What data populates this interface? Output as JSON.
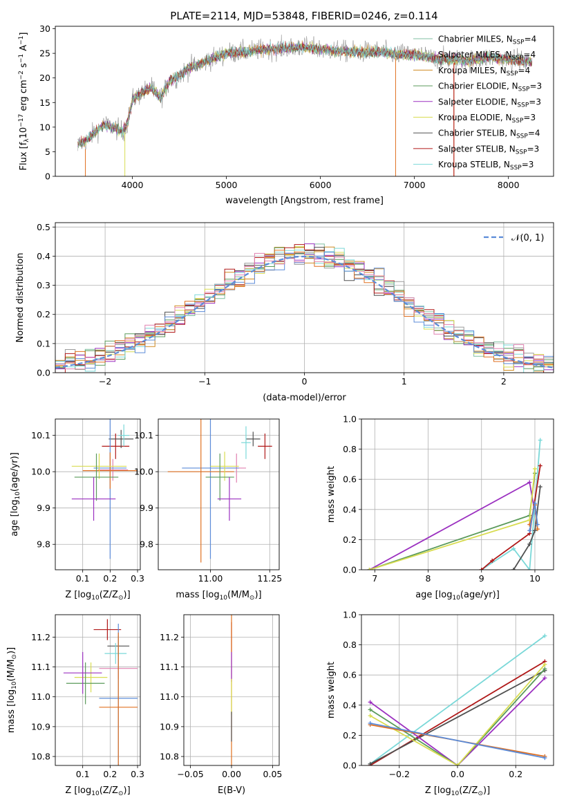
{
  "figure_title": "PLATE=2114, MJD=53848, FIBERID=0246, z=0.114",
  "model_colors": [
    "#7fbfa0",
    "#9a9a9a",
    "#d08a20",
    "#5a9a5a",
    "#9b30c0",
    "#d8dc50",
    "#505050",
    "#b01818",
    "#7ad8d8"
  ],
  "extra_colors": {
    "blue": "#5b8bd8",
    "orange": "#e07020",
    "pink": "#e080b0"
  },
  "chart_data": [
    {
      "id": "spectrum",
      "type": "line",
      "xlabel": "wavelength [Angstrom, rest frame]",
      "ylabel": "Flux [f",
      "ylabel_sub": "λ",
      "ylabel_rest": "10",
      "ylabel_exp": "−17",
      "ylabel_units": " erg cm",
      "ylabel_exp2": "−2",
      "ylabel_s": " s",
      "ylabel_exp3": "−1",
      "ylabel_A": " A",
      "ylabel_exp4": "−1",
      "ylabel_close": "]",
      "xlim": [
        3180,
        8480
      ],
      "ylim": [
        0,
        30.5
      ],
      "xticks": [
        4000,
        5000,
        6000,
        7000,
        8000
      ],
      "yticks": [
        0,
        5,
        10,
        15,
        20,
        25,
        30
      ],
      "continuum_x": [
        3420,
        3500,
        3600,
        3700,
        3800,
        3900,
        3950,
        4000,
        4100,
        4200,
        4300,
        4400,
        4500,
        4600,
        4800,
        5000,
        5200,
        5400,
        5600,
        5800,
        6000,
        6200,
        6400,
        6600,
        6800,
        7000,
        7200,
        7400,
        7600,
        7800,
        8000,
        8250
      ],
      "continuum_y": [
        6.5,
        7.0,
        9.0,
        10.5,
        10.0,
        9.0,
        11.0,
        15.5,
        17.0,
        18.0,
        16.0,
        19.5,
        20.5,
        22.0,
        23.5,
        25.0,
        25.3,
        25.8,
        26.0,
        26.3,
        25.8,
        25.5,
        25.2,
        25.4,
        24.8,
        24.8,
        24.0,
        23.8,
        23.5,
        24.2,
        23.7,
        23.3
      ],
      "legend": [
        {
          "label": "Chabrier MILES, N",
          "sub": "SSP",
          "tail": "=4"
        },
        {
          "label": "Salpeter MILES, N",
          "sub": "SSP",
          "tail": "=4"
        },
        {
          "label": "Kroupa MILES, N",
          "sub": "SSP",
          "tail": "=4"
        },
        {
          "label": "Chabrier ELODIE, N",
          "sub": "SSP",
          "tail": "=3"
        },
        {
          "label": "Salpeter ELODIE, N",
          "sub": "SSP",
          "tail": "=3"
        },
        {
          "label": "Kroupa ELODIE, N",
          "sub": "SSP",
          "tail": "=3"
        },
        {
          "label": "Chabrier STELIB, N",
          "sub": "SSP",
          "tail": "=4"
        },
        {
          "label": "Salpeter STELIB, N",
          "sub": "SSP",
          "tail": "=3"
        },
        {
          "label": "Kroupa STELIB, N",
          "sub": "SSP",
          "tail": "=3"
        }
      ],
      "grid": false,
      "legend_position": "upper-right"
    },
    {
      "id": "residuals",
      "type": "histogram",
      "xlabel": "(data-model)/error",
      "ylabel": "Normed distribution",
      "xlim": [
        -2.5,
        2.5
      ],
      "ylim": [
        0,
        0.515
      ],
      "xticks": [
        -2,
        -1,
        0,
        1,
        2
      ],
      "yticks": [
        0.0,
        0.1,
        0.2,
        0.3,
        0.4,
        0.5
      ],
      "bin_width": 0.1,
      "reference_curve": "N(0,1)",
      "reference_label": "𝒩(0, 1)",
      "grid": true,
      "legend_position": "upper-right"
    },
    {
      "id": "age_vs_Z",
      "type": "scatter",
      "xlabel": "Z [log",
      "xlabel_sub": "10",
      "xlabel_rest": "(Z/Z",
      "xlabel_sun": "⊙",
      "xlabel_close": ")]",
      "ylabel": "age  [log",
      "ylabel_sub": "10",
      "ylabel_rest": "(age/yr)]",
      "xlim": [
        0.0,
        0.31
      ],
      "ylim": [
        9.73,
        10.145
      ],
      "xticks": [
        0.1,
        0.2,
        0.3
      ],
      "yticks": [
        9.8,
        9.9,
        10.0,
        10.1
      ],
      "points": [
        {
          "x": 0.22,
          "y": 10.07,
          "ex": 0.05,
          "ey": 0.035,
          "c": "#b01818"
        },
        {
          "x": 0.24,
          "y": 10.09,
          "ex": 0.045,
          "ey": 0.025,
          "c": "#505050"
        },
        {
          "x": 0.25,
          "y": 10.1,
          "ex": 0.02,
          "ey": 0.03,
          "c": "#7ad8d8"
        },
        {
          "x": 0.21,
          "y": 10.005,
          "ex": 0.055,
          "ey": 0.03,
          "c": "#e080b0"
        },
        {
          "x": 0.2,
          "y": 10.01,
          "ex": 0.06,
          "ey": 0.25,
          "c": "#5b8bd8"
        },
        {
          "x": 0.2,
          "y": 10.003,
          "ex": 0.1,
          "ey": 0.05,
          "c": "#e07020"
        },
        {
          "x": 0.16,
          "y": 10.015,
          "ex": 0.1,
          "ey": 0.035,
          "c": "#d8dc50"
        },
        {
          "x": 0.15,
          "y": 9.985,
          "ex": 0.08,
          "ey": 0.065,
          "c": "#5a9a5a"
        },
        {
          "x": 0.14,
          "y": 9.925,
          "ex": 0.08,
          "ey": 0.06,
          "c": "#9b30c0"
        }
      ],
      "grid": true
    },
    {
      "id": "age_vs_mass",
      "type": "scatter",
      "xlabel": "mass [log",
      "xlabel_sub": "10",
      "xlabel_rest": "(M/M",
      "xlabel_sun": "⊙",
      "xlabel_close": ")]",
      "xlim": [
        10.78,
        11.29
      ],
      "ylim": [
        9.73,
        10.145
      ],
      "xticks": [
        11.0,
        11.25
      ],
      "xtick_labels": [
        "11.00",
        "11.25"
      ],
      "yticks": [
        9.8,
        9.9,
        10.0,
        10.1
      ],
      "points": [
        {
          "x": 11.23,
          "y": 10.07,
          "ex": 0.03,
          "ey": 0.035,
          "c": "#b01818"
        },
        {
          "x": 11.18,
          "y": 10.09,
          "ex": 0.03,
          "ey": 0.02,
          "c": "#505050"
        },
        {
          "x": 11.15,
          "y": 10.08,
          "ex": 0.02,
          "ey": 0.045,
          "c": "#7ad8d8"
        },
        {
          "x": 11.11,
          "y": 10.01,
          "ex": 0.04,
          "ey": 0.04,
          "c": "#e080b0"
        },
        {
          "x": 11.0,
          "y": 10.01,
          "ex": 0.12,
          "ey": 0.25,
          "c": "#5b8bd8"
        },
        {
          "x": 10.96,
          "y": 10.0,
          "ex": 0.14,
          "ey": 0.25,
          "c": "#e07020"
        },
        {
          "x": 11.06,
          "y": 10.015,
          "ex": 0.06,
          "ey": 0.04,
          "c": "#d8dc50"
        },
        {
          "x": 11.04,
          "y": 9.985,
          "ex": 0.06,
          "ey": 0.065,
          "c": "#5a9a5a"
        },
        {
          "x": 11.08,
          "y": 9.925,
          "ex": 0.05,
          "ey": 0.06,
          "c": "#9b30c0"
        }
      ],
      "grid": true
    },
    {
      "id": "weight_vs_age",
      "type": "line",
      "xlabel": "age  [log",
      "xlabel_sub": "10",
      "xlabel_rest": "(age/yr)]",
      "ylabel": "mass weight",
      "xlim": [
        6.75,
        10.35
      ],
      "ylim": [
        0,
        1.0
      ],
      "xticks": [
        7,
        8,
        9,
        10
      ],
      "yticks": [
        0.0,
        0.2,
        0.4,
        0.6,
        0.8,
        1.0
      ],
      "series": [
        {
          "c": "#9b30c0",
          "x": [
            6.9,
            9.9,
            10.0
          ],
          "y": [
            0.0,
            0.58,
            0.38
          ]
        },
        {
          "c": "#5a9a5a",
          "x": [
            6.9,
            9.9,
            10.0
          ],
          "y": [
            0.0,
            0.36,
            0.64
          ]
        },
        {
          "c": "#d8dc50",
          "x": [
            6.9,
            9.9,
            10.0
          ],
          "y": [
            0.0,
            0.33,
            0.67
          ]
        },
        {
          "c": "#7ad8d8",
          "x": [
            9.0,
            9.6,
            9.9,
            10.1
          ],
          "y": [
            0.0,
            0.14,
            0.0,
            0.86
          ]
        },
        {
          "c": "#b01818",
          "x": [
            9.0,
            9.2,
            9.9,
            10.1
          ],
          "y": [
            0.0,
            0.06,
            0.24,
            0.69
          ]
        },
        {
          "c": "#505050",
          "x": [
            9.6,
            9.9,
            10.0,
            10.1
          ],
          "y": [
            0.0,
            0.17,
            0.26,
            0.55
          ]
        },
        {
          "c": "#e07020",
          "x": [
            9.9,
            10.0,
            10.05
          ],
          "y": [
            0.3,
            0.43,
            0.27
          ]
        },
        {
          "c": "#5b8bd8",
          "x": [
            9.9,
            10.0,
            10.05
          ],
          "y": [
            0.26,
            0.44,
            0.3
          ]
        }
      ],
      "grid": true
    },
    {
      "id": "mass_vs_Z",
      "type": "scatter",
      "xlabel": "Z [log",
      "xlabel_sub": "10",
      "xlabel_rest": "(Z/Z",
      "xlabel_sun": "⊙",
      "xlabel_close": ")]",
      "ylabel": "mass [log",
      "ylabel_sub": "10",
      "ylabel_rest": "(M/M",
      "ylabel_sun": "⊙",
      "ylabel_close": ")]",
      "xlim": [
        0.0,
        0.31
      ],
      "ylim": [
        10.77,
        11.275
      ],
      "xticks": [
        0.1,
        0.2,
        0.3
      ],
      "yticks": [
        10.8,
        10.9,
        11.0,
        11.1,
        11.2
      ],
      "points": [
        {
          "x": 0.19,
          "y": 11.225,
          "ex": 0.05,
          "ey": 0.035,
          "c": "#b01818"
        },
        {
          "x": 0.23,
          "y": 11.17,
          "ex": 0.04,
          "ey": 0.035,
          "c": "#505050"
        },
        {
          "x": 0.22,
          "y": 11.145,
          "ex": 0.04,
          "ey": 0.035,
          "c": "#7ad8d8"
        },
        {
          "x": 0.23,
          "y": 11.095,
          "ex": 0.07,
          "ey": 0.035,
          "c": "#e080b0"
        },
        {
          "x": 0.23,
          "y": 10.995,
          "ex": 0.07,
          "ey": 0.25,
          "c": "#5b8bd8"
        },
        {
          "x": 0.23,
          "y": 10.965,
          "ex": 0.07,
          "ey": 0.25,
          "c": "#e07020"
        },
        {
          "x": 0.13,
          "y": 11.065,
          "ex": 0.06,
          "ey": 0.05,
          "c": "#d8dc50"
        },
        {
          "x": 0.11,
          "y": 11.045,
          "ex": 0.07,
          "ey": 0.07,
          "c": "#5a9a5a"
        },
        {
          "x": 0.1,
          "y": 11.08,
          "ex": 0.07,
          "ey": 0.07,
          "c": "#9b30c0"
        }
      ],
      "grid": true
    },
    {
      "id": "mass_vs_ebv",
      "type": "scatter",
      "xlabel": "E(B-V)",
      "xlim": [
        -0.058,
        0.058
      ],
      "ylim": [
        10.77,
        11.275
      ],
      "xticks": [
        -0.05,
        0.0,
        0.05
      ],
      "xtick_labels": [
        "−0.05",
        "0.00",
        "0.05"
      ],
      "yticks": [
        10.8,
        10.9,
        11.0,
        11.1,
        11.2
      ],
      "points": [
        {
          "x": 0.0,
          "y": 11.2,
          "ex": 0,
          "ey": 0.05,
          "c": "#b01818"
        },
        {
          "x": 0.0,
          "y": 11.05,
          "ex": 0,
          "ey": 0.28,
          "c": "#e07020"
        },
        {
          "x": 0.0,
          "y": 11.1,
          "ex": 0,
          "ey": 0.05,
          "c": "#9b30c0"
        },
        {
          "x": 0.0,
          "y": 11.0,
          "ex": 0,
          "ey": 0.06,
          "c": "#d8dc50"
        },
        {
          "x": 0.0,
          "y": 10.9,
          "ex": 0,
          "ey": 0.05,
          "c": "#505050"
        }
      ],
      "grid": true
    },
    {
      "id": "weight_vs_Z",
      "type": "line",
      "xlabel": "Z [log",
      "xlabel_sub": "10",
      "xlabel_rest": "(Z/Z",
      "xlabel_sun": "⊙",
      "xlabel_close": ")]",
      "ylabel": "mass weight",
      "xlim": [
        -0.33,
        0.33
      ],
      "ylim": [
        0,
        1.0
      ],
      "xticks": [
        -0.2,
        0.0,
        0.2
      ],
      "xtick_labels": [
        "−0.2",
        "0.0",
        "0.2"
      ],
      "yticks": [
        0.0,
        0.2,
        0.4,
        0.6,
        0.8,
        1.0
      ],
      "series": [
        {
          "c": "#7ad8d8",
          "x": [
            -0.3,
            0.3
          ],
          "y": [
            0.01,
            0.86
          ]
        },
        {
          "c": "#b01818",
          "x": [
            -0.3,
            0.3
          ],
          "y": [
            0.0,
            0.69
          ]
        },
        {
          "c": "#505050",
          "x": [
            -0.3,
            0.3
          ],
          "y": [
            0.01,
            0.63
          ]
        },
        {
          "c": "#9b30c0",
          "x": [
            -0.3,
            0.0,
            0.3
          ],
          "y": [
            0.42,
            0.0,
            0.58
          ]
        },
        {
          "c": "#5a9a5a",
          "x": [
            -0.3,
            0.0,
            0.3
          ],
          "y": [
            0.37,
            0.0,
            0.64
          ]
        },
        {
          "c": "#d8dc50",
          "x": [
            -0.3,
            0.0,
            0.3
          ],
          "y": [
            0.33,
            0.0,
            0.67
          ]
        },
        {
          "c": "#e07020",
          "x": [
            -0.3,
            0.3
          ],
          "y": [
            0.27,
            0.06
          ]
        },
        {
          "c": "#5b8bd8",
          "x": [
            -0.3,
            0.3
          ],
          "y": [
            0.28,
            0.05
          ]
        }
      ],
      "grid": true
    }
  ]
}
